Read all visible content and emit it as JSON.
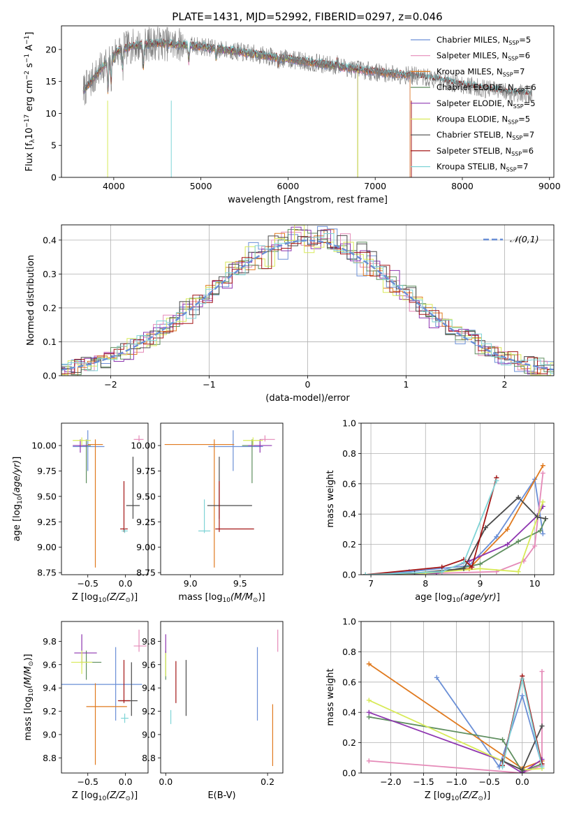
{
  "figure": {
    "title": "PLATE=1431, MJD=52992, FIBERID=0297, z=0.046"
  },
  "colors": {
    "Chabrier MILES": "#6a8fd6",
    "Salpeter MILES": "#e58ab8",
    "Kroupa MILES": "#e07a1f",
    "Chabrier ELODIE": "#5e8e5e",
    "Salpeter ELODIE": "#8e36b0",
    "Kroupa ELODIE": "#d8ea58",
    "Chabrier STELIB": "#4a4a4a",
    "Salpeter STELIB": "#a31515",
    "Kroupa STELIB": "#7fd4d6",
    "data": "#7a7a7a"
  },
  "chart_data": [
    {
      "id": "spectrum",
      "type": "line",
      "xlabel": "wavelength [Angstrom, rest frame]",
      "ylabel": "Flux [f_λ 10^-17 erg cm^-2 s^-1 A^-1]",
      "xlim": [
        3400,
        9050
      ],
      "ylim": [
        0,
        23.7
      ],
      "xticks": [
        4000,
        5000,
        6000,
        7000,
        8000,
        9000
      ],
      "yticks": [
        0,
        5,
        10,
        15,
        20
      ],
      "grid": false,
      "legend_position": "right",
      "continuum": {
        "x": [
          3650,
          3800,
          4000,
          4200,
          4500,
          5000,
          5500,
          6000,
          6500,
          7000,
          7500,
          8000,
          8500,
          8800
        ],
        "y": [
          13.5,
          16.0,
          19.5,
          20.5,
          21.0,
          20.5,
          19.5,
          18.5,
          17.5,
          16.5,
          15.8,
          14.5,
          13.3,
          13.0
        ]
      },
      "series": [
        {
          "name": "Chabrier MILES",
          "nssp": 5,
          "end_x": 7400
        },
        {
          "name": "Salpeter MILES",
          "nssp": 6,
          "end_x": 7400
        },
        {
          "name": "Kroupa MILES",
          "nssp": 7,
          "end_x": 7400
        },
        {
          "name": "Chabrier ELODIE",
          "nssp": 6,
          "end_x": 6800
        },
        {
          "name": "Salpeter ELODIE",
          "nssp": 5,
          "end_x": 6800
        },
        {
          "name": "Kroupa ELODIE",
          "nssp": 5,
          "end_x": 6800
        },
        {
          "name": "Chabrier STELIB",
          "nssp": 7,
          "end_x": 8800
        },
        {
          "name": "Salpeter STELIB",
          "nssp": 6,
          "end_x": 8800
        },
        {
          "name": "Kroupa STELIB",
          "nssp": 7,
          "end_x": 8800
        }
      ]
    },
    {
      "id": "residuals",
      "type": "line",
      "xlabel": "(data-model)/error",
      "ylabel": "Normed distribution",
      "xlim": [
        -2.5,
        2.5
      ],
      "ylim": [
        0,
        0.445
      ],
      "xticks": [
        -2,
        -1,
        0,
        1,
        2
      ],
      "yticks": [
        0.0,
        0.1,
        0.2,
        0.3,
        0.4
      ],
      "grid": true,
      "bin_width": 0.1,
      "reference": {
        "name": "N(0,1)",
        "style": "dashed"
      },
      "legend_position": "top-right"
    },
    {
      "id": "age-z",
      "type": "scatter",
      "xlabel": "Z [log10(Z/Z⊙)]",
      "ylabel": "age [log10(age/yr)]",
      "xlim": [
        -0.85,
        0.3
      ],
      "ylim": [
        8.73,
        10.22
      ],
      "xticks": [
        -0.5,
        0.0
      ],
      "yticks": [
        8.75,
        9.0,
        9.25,
        9.5,
        9.75,
        10.0
      ],
      "grid": false,
      "points": [
        {
          "series": "Chabrier MILES",
          "x": -0.5,
          "y": 9.99,
          "xerr": [
            0.2,
            0.22
          ],
          "yerr": [
            0.24,
            0.16
          ]
        },
        {
          "series": "Salpeter MILES",
          "x": 0.18,
          "y": 10.06,
          "xerr": [
            0.07,
            0.06
          ],
          "yerr": [
            0.02,
            0.04
          ]
        },
        {
          "series": "Kroupa MILES",
          "x": -0.4,
          "y": 10.01,
          "xerr": [
            0.1,
            0.1
          ],
          "yerr": [
            1.21,
            0.05
          ]
        },
        {
          "series": "Chabrier ELODIE",
          "x": -0.52,
          "y": 10.0,
          "xerr": [
            0.1,
            0.06
          ],
          "yerr": [
            0.37,
            0.06
          ]
        },
        {
          "series": "Salpeter ELODIE",
          "x": -0.6,
          "y": 10.0,
          "xerr": [
            0.1,
            0.1
          ],
          "yerr": [
            0.07,
            0.06
          ]
        },
        {
          "series": "Kroupa ELODIE",
          "x": -0.58,
          "y": 10.05,
          "xerr": [
            0.12,
            0.12
          ],
          "yerr": [
            0.05,
            0.03
          ]
        },
        {
          "series": "Chabrier STELIB",
          "x": 0.1,
          "y": 9.41,
          "xerr": [
            0.09,
            0.09
          ],
          "yerr": [
            0.13,
            0.48
          ]
        },
        {
          "series": "Salpeter STELIB",
          "x": -0.02,
          "y": 9.18,
          "xerr": [
            0.05,
            0.05
          ],
          "yerr": [
            0.03,
            0.47
          ]
        },
        {
          "series": "Kroupa STELIB",
          "x": -0.01,
          "y": 9.16,
          "xerr": [
            0.04,
            0.04
          ],
          "yerr": [
            0.02,
            0.02
          ]
        }
      ]
    },
    {
      "id": "age-mass",
      "type": "scatter",
      "xlabel": "mass [log10(M/M⊙)]",
      "ylabel": "",
      "xlim": [
        8.7,
        9.93
      ],
      "ylim": [
        8.73,
        10.22
      ],
      "xticks": [
        9.0,
        9.5
      ],
      "yticks": [
        8.75,
        9.0,
        9.25,
        9.5,
        9.75,
        10.0
      ],
      "grid": false,
      "points": [
        {
          "series": "Chabrier MILES",
          "x": 9.43,
          "y": 9.99,
          "xerr": [
            0.25,
            0.3
          ],
          "yerr": [
            0.24,
            0.16
          ]
        },
        {
          "series": "Salpeter MILES",
          "x": 9.75,
          "y": 10.06,
          "xerr": [
            0.05,
            0.1
          ],
          "yerr": [
            0.02,
            0.04
          ]
        },
        {
          "series": "Kroupa MILES",
          "x": 9.24,
          "y": 10.01,
          "xerr": [
            0.5,
            0.2
          ],
          "yerr": [
            1.21,
            0.05
          ]
        },
        {
          "series": "Chabrier ELODIE",
          "x": 9.62,
          "y": 10.0,
          "xerr": [
            0.1,
            0.1
          ],
          "yerr": [
            0.37,
            0.06
          ]
        },
        {
          "series": "Salpeter ELODIE",
          "x": 9.7,
          "y": 10.0,
          "xerr": [
            0.12,
            0.12
          ],
          "yerr": [
            0.07,
            0.06
          ]
        },
        {
          "series": "Kroupa ELODIE",
          "x": 9.63,
          "y": 10.05,
          "xerr": [
            0.1,
            0.1
          ],
          "yerr": [
            0.05,
            0.03
          ]
        },
        {
          "series": "Chabrier STELIB",
          "x": 9.29,
          "y": 9.41,
          "xerr": [
            0.12,
            0.33
          ],
          "yerr": [
            0.13,
            0.48
          ]
        },
        {
          "series": "Salpeter STELIB",
          "x": 9.29,
          "y": 9.18,
          "xerr": [
            0.04,
            0.35
          ],
          "yerr": [
            0.03,
            0.47
          ]
        },
        {
          "series": "Kroupa STELIB",
          "x": 9.14,
          "y": 9.16,
          "xerr": [
            0.06,
            0.06
          ],
          "yerr": [
            0.02,
            0.31
          ]
        }
      ]
    },
    {
      "id": "weight-age",
      "type": "line",
      "xlabel": "age [log10(age/yr)]",
      "ylabel": "mass weight",
      "xlim": [
        6.82,
        10.35
      ],
      "ylim": [
        0,
        1.0
      ],
      "xticks": [
        7,
        8,
        9,
        10
      ],
      "yticks": [
        0.0,
        0.2,
        0.4,
        0.6,
        0.8,
        1.0
      ],
      "grid": true,
      "series": [
        {
          "name": "Chabrier MILES",
          "x": [
            6.9,
            7.7,
            8.8,
            9.3,
            10.0,
            10.15
          ],
          "y": [
            0.0,
            0.02,
            0.06,
            0.25,
            0.63,
            0.27
          ]
        },
        {
          "name": "Salpeter MILES",
          "x": [
            6.9,
            8.3,
            9.3,
            9.8,
            10.0,
            10.15
          ],
          "y": [
            0.0,
            0.01,
            0.02,
            0.09,
            0.19,
            0.67
          ]
        },
        {
          "name": "Kroupa MILES",
          "x": [
            6.9,
            8.0,
            8.8,
            9.5,
            10.15
          ],
          "y": [
            0.0,
            0.01,
            0.04,
            0.3,
            0.72
          ]
        },
        {
          "name": "Chabrier ELODIE",
          "x": [
            6.9,
            8.2,
            9.0,
            9.7,
            10.1,
            10.2
          ],
          "y": [
            0.0,
            0.01,
            0.07,
            0.22,
            0.29,
            0.37
          ]
        },
        {
          "name": "Salpeter ELODIE",
          "x": [
            6.9,
            8.2,
            8.8,
            9.5,
            10.05,
            10.15
          ],
          "y": [
            0.0,
            0.01,
            0.09,
            0.2,
            0.39,
            0.45
          ]
        },
        {
          "name": "Kroupa ELODIE",
          "x": [
            6.9,
            8.0,
            9.0,
            9.7,
            10.15
          ],
          "y": [
            0.0,
            0.01,
            0.04,
            0.02,
            0.48
          ]
        },
        {
          "name": "Chabrier STELIB",
          "x": [
            6.9,
            7.8,
            8.7,
            9.1,
            9.7,
            10.05,
            10.2
          ],
          "y": [
            0.0,
            0.01,
            0.04,
            0.31,
            0.51,
            0.38,
            0.37
          ]
        },
        {
          "name": "Salpeter STELIB",
          "x": [
            6.9,
            8.3,
            8.7,
            8.85,
            9.3
          ],
          "y": [
            0.0,
            0.05,
            0.1,
            0.05,
            0.64
          ]
        },
        {
          "name": "Kroupa STELIB",
          "x": [
            6.9,
            8.3,
            8.7,
            9.3
          ],
          "y": [
            0.0,
            0.02,
            0.08,
            0.62
          ]
        }
      ]
    },
    {
      "id": "mass-z",
      "type": "scatter",
      "xlabel": "Z [log10(Z/Z⊙)]",
      "ylabel": "mass [log10(M/M⊙)]",
      "xlim": [
        -0.85,
        0.3
      ],
      "ylim": [
        8.67,
        9.97
      ],
      "xticks": [
        -0.5,
        0.0
      ],
      "yticks": [
        8.8,
        9.0,
        9.2,
        9.4,
        9.6,
        9.8
      ],
      "grid": false,
      "points": [
        {
          "series": "Chabrier MILES",
          "x": -0.13,
          "y": 9.43,
          "xerr": [
            0.72,
            0.35
          ],
          "yerr": [
            0.31,
            0.32
          ]
        },
        {
          "series": "Salpeter MILES",
          "x": 0.18,
          "y": 9.76,
          "xerr": [
            0.07,
            0.1
          ],
          "yerr": [
            0.05,
            0.14
          ]
        },
        {
          "series": "Kroupa MILES",
          "x": -0.4,
          "y": 9.24,
          "xerr": [
            0.12,
            0.42
          ],
          "yerr": [
            0.5,
            0.2
          ]
        },
        {
          "series": "Chabrier ELODIE",
          "x": -0.52,
          "y": 9.62,
          "xerr": [
            0.08,
            0.2
          ],
          "yerr": [
            0.15,
            0.1
          ]
        },
        {
          "series": "Salpeter ELODIE",
          "x": -0.58,
          "y": 9.7,
          "xerr": [
            0.1,
            0.2
          ],
          "yerr": [
            0.1,
            0.16
          ]
        },
        {
          "series": "Kroupa ELODIE",
          "x": -0.58,
          "y": 9.62,
          "xerr": [
            0.14,
            0.14
          ],
          "yerr": [
            0.1,
            0.1
          ]
        },
        {
          "series": "Chabrier STELIB",
          "x": 0.08,
          "y": 9.29,
          "xerr": [
            0.16,
            0.08
          ],
          "yerr": [
            0.13,
            0.33
          ]
        },
        {
          "series": "Salpeter STELIB",
          "x": -0.02,
          "y": 9.29,
          "xerr": [
            0.08,
            0.08
          ],
          "yerr": [
            0.02,
            0.35
          ]
        },
        {
          "series": "Kroupa STELIB",
          "x": -0.01,
          "y": 9.14,
          "xerr": [
            0.05,
            0.05
          ],
          "yerr": [
            0.04,
            0.04
          ]
        }
      ]
    },
    {
      "id": "mass-ebv",
      "type": "scatter",
      "xlabel": "E(B-V)",
      "ylabel": "",
      "xlim": [
        -0.01,
        0.23
      ],
      "ylim": [
        8.67,
        9.97
      ],
      "xticks": [
        0.0,
        0.2
      ],
      "yticks": [
        8.8,
        9.0,
        9.2,
        9.4,
        9.6,
        9.8
      ],
      "grid": false,
      "points": [
        {
          "series": "Chabrier MILES",
          "x": 0.18,
          "y": 9.43,
          "yerr": [
            0.31,
            0.32
          ]
        },
        {
          "series": "Salpeter MILES",
          "x": 0.22,
          "y": 9.76,
          "yerr": [
            0.05,
            0.14
          ]
        },
        {
          "series": "Kroupa MILES",
          "x": 0.21,
          "y": 9.0,
          "yerr": [
            0.27,
            0.26
          ]
        },
        {
          "series": "Chabrier ELODIE",
          "x": 0.0,
          "y": 9.62,
          "yerr": [
            0.15,
            0.1
          ]
        },
        {
          "series": "Salpeter ELODIE",
          "x": 0.0,
          "y": 9.78,
          "yerr": [
            0.08,
            0.08
          ]
        },
        {
          "series": "Kroupa ELODIE",
          "x": 0.0,
          "y": 9.6,
          "yerr": [
            0.1,
            0.1
          ]
        },
        {
          "series": "Chabrier STELIB",
          "x": 0.04,
          "y": 9.4,
          "yerr": [
            0.24,
            0.24
          ]
        },
        {
          "series": "Salpeter STELIB",
          "x": 0.02,
          "y": 9.45,
          "yerr": [
            0.18,
            0.18
          ]
        },
        {
          "series": "Kroupa STELIB",
          "x": 0.01,
          "y": 9.15,
          "yerr": [
            0.06,
            0.06
          ]
        }
      ]
    },
    {
      "id": "weight-z",
      "type": "line",
      "xlabel": "Z [log10(Z/Z⊙)]",
      "ylabel": "mass weight",
      "xlim": [
        -2.45,
        0.48
      ],
      "ylim": [
        0,
        1.0
      ],
      "xticks": [
        -2.0,
        -1.5,
        -1.0,
        -0.5,
        0.0
      ],
      "yticks": [
        0.0,
        0.2,
        0.4,
        0.6,
        0.8,
        1.0
      ],
      "grid": true,
      "series": [
        {
          "name": "Chabrier MILES",
          "x": [
            -1.3,
            -0.35,
            0.0,
            0.3
          ],
          "y": [
            0.63,
            0.04,
            0.51,
            0.05
          ]
        },
        {
          "name": "Salpeter MILES",
          "x": [
            -2.33,
            0.0,
            0.3,
            0.3
          ],
          "y": [
            0.08,
            0.0,
            0.05,
            0.67
          ]
        },
        {
          "name": "Kroupa MILES",
          "x": [
            -2.33,
            0.0,
            0.3
          ],
          "y": [
            0.72,
            0.03,
            0.08
          ]
        },
        {
          "name": "Chabrier ELODIE",
          "x": [
            -2.33,
            -0.3,
            0.0,
            0.3
          ],
          "y": [
            0.37,
            0.22,
            0.01,
            0.06
          ]
        },
        {
          "name": "Salpeter ELODIE",
          "x": [
            -2.33,
            -0.3,
            0.0,
            0.3
          ],
          "y": [
            0.4,
            0.08,
            0.0,
            0.09
          ]
        },
        {
          "name": "Kroupa ELODIE",
          "x": [
            -2.33,
            0.0,
            0.3
          ],
          "y": [
            0.48,
            0.02,
            0.03
          ]
        },
        {
          "name": "Chabrier STELIB",
          "x": [
            -0.3,
            0.0,
            0.3
          ],
          "y": [
            0.08,
            0.02,
            0.31
          ]
        },
        {
          "name": "Salpeter STELIB",
          "x": [
            -0.3,
            0.0,
            0.3
          ],
          "y": [
            0.05,
            0.64,
            0.06
          ]
        },
        {
          "name": "Kroupa STELIB",
          "x": [
            -0.3,
            0.0,
            0.3
          ],
          "y": [
            0.04,
            0.62,
            0.04
          ]
        }
      ]
    }
  ]
}
